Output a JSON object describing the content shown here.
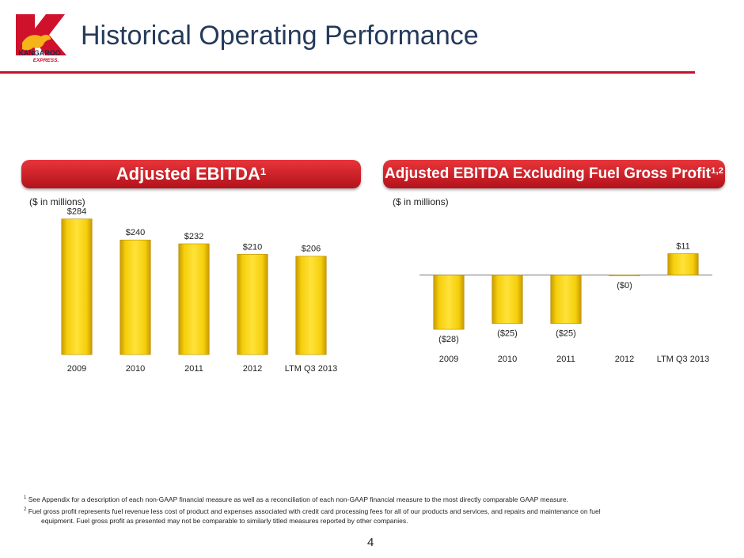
{
  "slide": {
    "title": "Historical Operating Performance",
    "logo_text": "KANGAROO EXPRESS.",
    "page_number": "4",
    "accent_color": "#c8102e",
    "bar_color": "#f5cf0c"
  },
  "panels": {
    "left": {
      "title": "Adjusted EBITDA",
      "superscript": "1",
      "units": "($ in millions)"
    },
    "right": {
      "title": "Adjusted EBITDA Excluding Fuel Gross Profit",
      "superscript": "1,2",
      "units": "($ in millions)"
    }
  },
  "footnotes": [
    {
      "marker": "1",
      "text": "See Appendix for a description of each non-GAAP financial measure as well as a reconciliation of each non-GAAP financial measure to the most directly comparable GAAP measure."
    },
    {
      "marker": "2",
      "text": "Fuel gross profit represents fuel revenue less cost of product and expenses associated with credit card processing fees for all of our products and services, and repairs and maintenance on fuel equipment. Fuel gross profit as presented may not be comparable to similarly titled measures reported by other companies."
    }
  ],
  "chart_data": [
    {
      "type": "bar",
      "title": "Adjusted EBITDA",
      "categories": [
        "2009",
        "2010",
        "2011",
        "2012",
        "LTM Q3 2013"
      ],
      "values": [
        284,
        240,
        232,
        210,
        206
      ],
      "labels": [
        "$284",
        "$240",
        "$232",
        "$210",
        "$206"
      ],
      "ylim": [
        0,
        290
      ],
      "grid": false
    },
    {
      "type": "bar",
      "title": "Adjusted EBITDA Excluding Fuel Gross Profit",
      "categories": [
        "2009",
        "2010",
        "2011",
        "2012",
        "LTM Q3 2013"
      ],
      "values": [
        -28,
        -25,
        -25,
        -0.2,
        11
      ],
      "labels": [
        "($28)",
        "($25)",
        "($25)",
        "($0)",
        "$11"
      ],
      "ylim": [
        -30,
        12
      ],
      "grid": false
    }
  ]
}
